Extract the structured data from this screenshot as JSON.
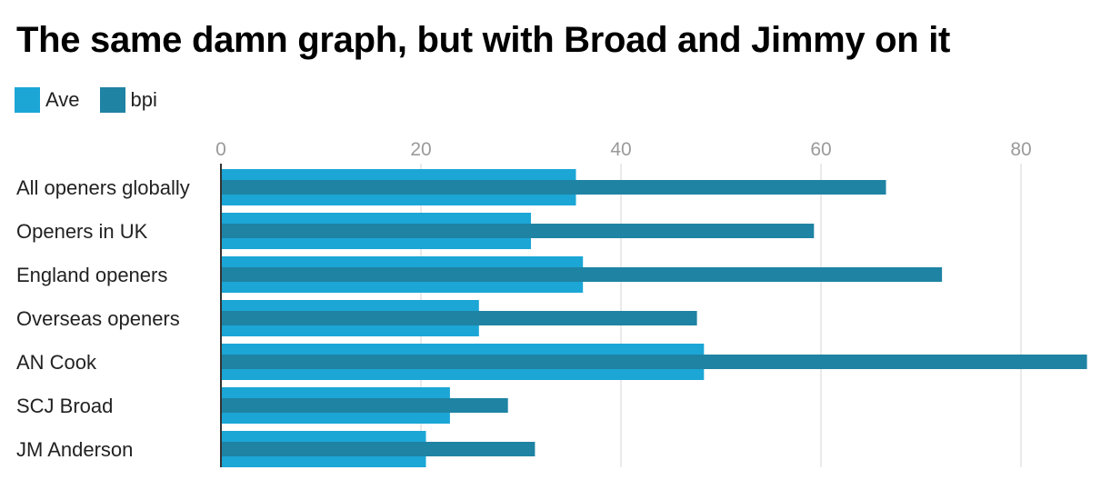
{
  "chart_data": {
    "type": "bar",
    "orientation": "horizontal",
    "title": "The same damn graph, but with Broad and Jimmy on it",
    "categories": [
      "All openers globally",
      "Openers in UK",
      "England openers",
      "Overseas openers",
      "AN Cook",
      "SCJ Broad",
      "JM Anderson"
    ],
    "series": [
      {
        "name": "Ave",
        "color": "#1ba6d6",
        "values": [
          35.5,
          31.0,
          36.2,
          25.8,
          48.3,
          22.9,
          20.5
        ]
      },
      {
        "name": "bpi",
        "color": "#1f83a3",
        "values": [
          66.5,
          59.3,
          72.1,
          47.6,
          86.6,
          28.7,
          31.4
        ]
      }
    ],
    "xlim": [
      0,
      87
    ],
    "xticks": [
      0,
      20,
      40,
      60,
      80
    ],
    "xtick_labels": [
      "0",
      "20",
      "40",
      "60",
      "80"
    ],
    "grid": true,
    "legend_position": "top-left"
  }
}
